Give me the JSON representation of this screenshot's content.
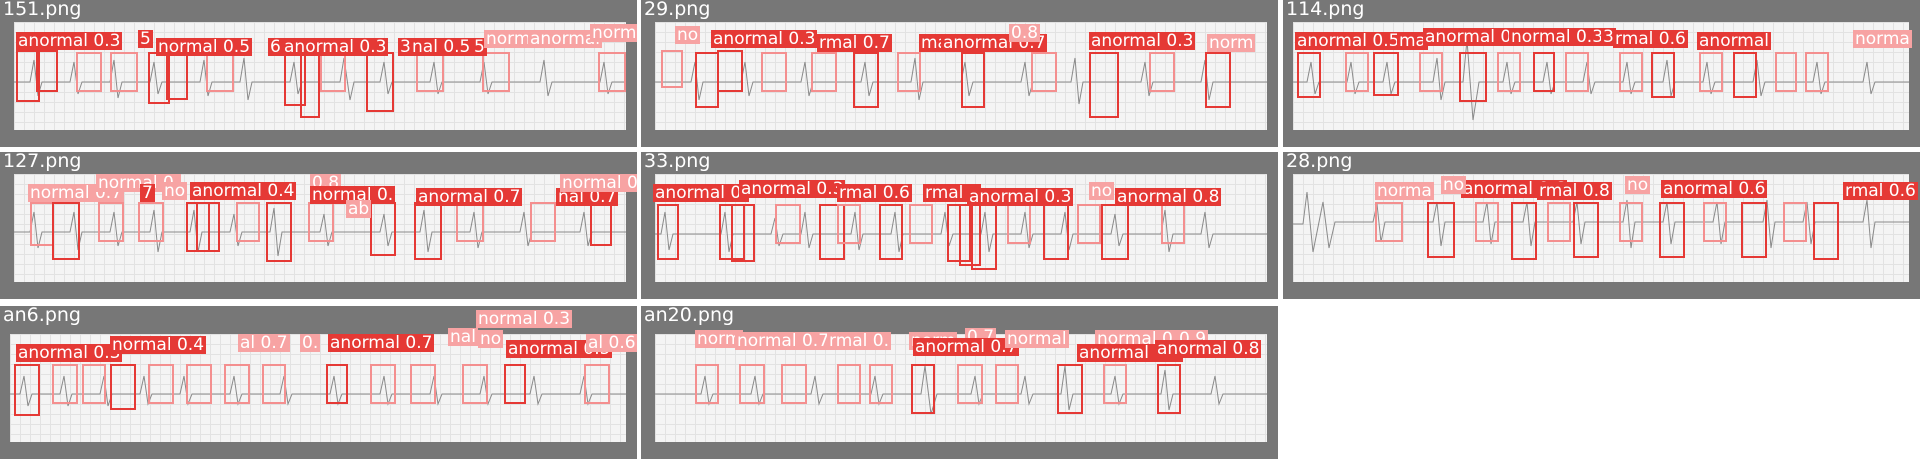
{
  "colors": {
    "abnormal": "#e53935",
    "normal": "#f7a3a3",
    "tile_bg": "#777777"
  },
  "tiles": [
    {
      "name": "151.png",
      "labels": [
        "anormal 0.3",
        "5",
        "normal 0.5",
        "6",
        "anormal 0.3",
        "3",
        "nal 0.5",
        "5",
        "norma",
        "anormal",
        "norma"
      ]
    },
    {
      "name": "29.png",
      "labels": [
        "no",
        "anormal 0.3",
        "rmal 0.7",
        "ma",
        "anormal 0.7",
        "anormal 0.3",
        "norm",
        "0.8"
      ]
    },
    {
      "name": "114.png",
      "labels": [
        "anormal 0.5",
        "ma",
        "anormal 0",
        "normal 0.3",
        "3",
        "rmal 0.6",
        "anormal",
        "norma"
      ]
    },
    {
      "name": "127.png",
      "labels": [
        "normal 0.7",
        "normal 0.",
        "7",
        "no",
        "anormal 0.4",
        "0.8",
        "normal 0.",
        "anormal 0.7",
        "nal 0.7",
        "normal 0.8",
        "ab"
      ]
    },
    {
      "name": "33.png",
      "labels": [
        "anormal 0.",
        "anormal 0.3",
        "rmal 0.6",
        "rmal a",
        "anormal 0.3",
        "no",
        "anormal 0.8"
      ]
    },
    {
      "name": "28.png",
      "labels": [
        "norma",
        "anormal 0.6",
        "rmal 0.8",
        "anormal 0.6",
        "rmal 0.6",
        "no",
        "no"
      ]
    },
    {
      "name": "an6.png",
      "labels": [
        "normal 0.3",
        "anormal 0.3",
        "normal 0.4",
        "al 0.7",
        "0.",
        "anormal 0.7",
        "nal",
        "no",
        "anormal 0.5",
        "al 0.6"
      ]
    },
    {
      "name": "an20.png",
      "labels": [
        "norm",
        "normal 0.7",
        "rmal 0.",
        "norm",
        "0.7",
        "anormal 0.7",
        "normal",
        "normal 0.8",
        "0.9",
        "anormal 0.8",
        "anormal 0.8"
      ]
    }
  ]
}
